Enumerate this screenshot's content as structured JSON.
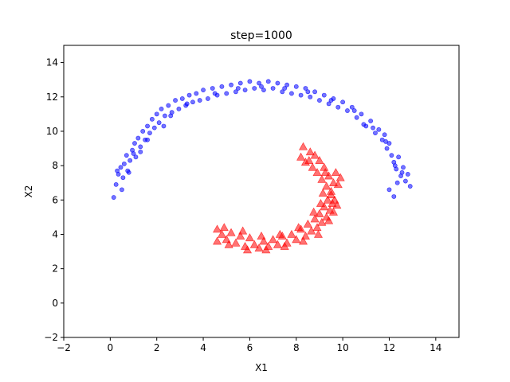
{
  "chart_data": {
    "type": "scatter",
    "title": "step=1000",
    "xlabel": "X1",
    "ylabel": "X2",
    "xlim": [
      -2,
      15
    ],
    "ylim": [
      -2,
      15
    ],
    "xticks": [
      -2,
      0,
      2,
      4,
      6,
      8,
      10,
      12,
      14
    ],
    "yticks": [
      -2,
      0,
      2,
      4,
      6,
      8,
      10,
      12,
      14
    ],
    "xtick_labels": [
      "−2",
      "0",
      "2",
      "4",
      "6",
      "8",
      "10",
      "12",
      "14"
    ],
    "ytick_labels": [
      "−2",
      "0",
      "2",
      "4",
      "6",
      "8",
      "10",
      "12",
      "14"
    ],
    "grid": false,
    "legend": "none",
    "series": [
      {
        "marker": "circle",
        "color": "#0000ff",
        "points": [
          [
            0.15,
            6.15
          ],
          [
            0.25,
            6.9
          ],
          [
            0.35,
            7.5
          ],
          [
            0.45,
            7.9
          ],
          [
            0.5,
            6.6
          ],
          [
            0.55,
            7.3
          ],
          [
            0.6,
            8.1
          ],
          [
            0.7,
            8.6
          ],
          [
            0.75,
            7.7
          ],
          [
            0.85,
            8.3
          ],
          [
            0.95,
            8.9
          ],
          [
            1.05,
            9.3
          ],
          [
            1.1,
            8.5
          ],
          [
            1.2,
            9.6
          ],
          [
            1.3,
            9.1
          ],
          [
            1.4,
            10.0
          ],
          [
            1.5,
            9.5
          ],
          [
            1.6,
            10.3
          ],
          [
            1.7,
            9.9
          ],
          [
            1.8,
            10.7
          ],
          [
            1.9,
            10.2
          ],
          [
            2.0,
            11.0
          ],
          [
            2.1,
            10.5
          ],
          [
            2.2,
            11.3
          ],
          [
            2.35,
            10.9
          ],
          [
            2.5,
            11.5
          ],
          [
            2.65,
            11.1
          ],
          [
            2.8,
            11.8
          ],
          [
            2.95,
            11.3
          ],
          [
            3.1,
            11.9
          ],
          [
            3.25,
            11.5
          ],
          [
            3.4,
            12.1
          ],
          [
            3.55,
            11.7
          ],
          [
            3.7,
            12.2
          ],
          [
            3.85,
            11.8
          ],
          [
            4.0,
            12.4
          ],
          [
            4.2,
            11.9
          ],
          [
            4.4,
            12.5
          ],
          [
            4.6,
            12.1
          ],
          [
            4.8,
            12.6
          ],
          [
            5.0,
            12.2
          ],
          [
            5.2,
            12.7
          ],
          [
            5.4,
            12.3
          ],
          [
            5.6,
            12.8
          ],
          [
            5.8,
            12.4
          ],
          [
            6.0,
            12.9
          ],
          [
            6.2,
            12.5
          ],
          [
            6.4,
            12.8
          ],
          [
            6.6,
            12.4
          ],
          [
            6.8,
            12.9
          ],
          [
            7.0,
            12.5
          ],
          [
            7.2,
            12.8
          ],
          [
            7.4,
            12.3
          ],
          [
            7.6,
            12.7
          ],
          [
            7.8,
            12.2
          ],
          [
            8.0,
            12.6
          ],
          [
            8.2,
            12.1
          ],
          [
            8.4,
            12.5
          ],
          [
            8.6,
            12.0
          ],
          [
            8.8,
            12.3
          ],
          [
            9.0,
            11.8
          ],
          [
            9.2,
            12.1
          ],
          [
            9.4,
            11.6
          ],
          [
            9.6,
            11.9
          ],
          [
            9.8,
            11.4
          ],
          [
            10.0,
            11.7
          ],
          [
            10.2,
            11.2
          ],
          [
            10.4,
            11.4
          ],
          [
            10.6,
            10.8
          ],
          [
            10.8,
            11.0
          ],
          [
            11.0,
            10.3
          ],
          [
            11.2,
            10.6
          ],
          [
            11.4,
            9.9
          ],
          [
            11.55,
            10.1
          ],
          [
            11.7,
            9.5
          ],
          [
            11.8,
            9.8
          ],
          [
            11.9,
            9.0
          ],
          [
            12.0,
            9.3
          ],
          [
            12.1,
            8.6
          ],
          [
            12.2,
            8.2
          ],
          [
            12.3,
            7.8
          ],
          [
            12.4,
            8.5
          ],
          [
            12.5,
            7.4
          ],
          [
            12.6,
            7.9
          ],
          [
            12.7,
            7.1
          ],
          [
            12.8,
            7.5
          ],
          [
            12.9,
            6.8
          ],
          [
            12.2,
            6.2
          ],
          [
            12.0,
            6.6
          ],
          [
            12.35,
            7.0
          ],
          [
            0.3,
            7.7
          ],
          [
            1.0,
            8.7
          ],
          [
            1.6,
            9.5
          ],
          [
            2.6,
            10.9
          ],
          [
            3.3,
            11.6
          ],
          [
            4.5,
            12.2
          ],
          [
            5.5,
            12.5
          ],
          [
            6.5,
            12.6
          ],
          [
            7.5,
            12.5
          ],
          [
            8.5,
            12.3
          ],
          [
            9.5,
            11.8
          ],
          [
            10.5,
            11.2
          ],
          [
            11.3,
            10.2
          ],
          [
            11.85,
            9.4
          ],
          [
            12.25,
            8.0
          ],
          [
            12.55,
            7.6
          ],
          [
            0.8,
            7.6
          ],
          [
            1.3,
            8.8
          ],
          [
            2.3,
            10.3
          ],
          [
            10.9,
            10.4
          ]
        ]
      },
      {
        "marker": "triangle",
        "color": "#ff0000",
        "points": [
          [
            4.6,
            4.3
          ],
          [
            4.6,
            3.6
          ],
          [
            4.8,
            4.0
          ],
          [
            5.0,
            3.7
          ],
          [
            5.2,
            4.1
          ],
          [
            5.4,
            3.5
          ],
          [
            5.6,
            3.9
          ],
          [
            5.8,
            3.3
          ],
          [
            6.0,
            3.8
          ],
          [
            6.2,
            3.4
          ],
          [
            6.4,
            3.2
          ],
          [
            6.6,
            3.6
          ],
          [
            6.8,
            3.3
          ],
          [
            7.0,
            3.7
          ],
          [
            7.2,
            3.4
          ],
          [
            7.4,
            3.9
          ],
          [
            7.6,
            3.5
          ],
          [
            7.8,
            4.0
          ],
          [
            8.0,
            3.7
          ],
          [
            8.2,
            4.3
          ],
          [
            8.4,
            3.9
          ],
          [
            8.5,
            4.6
          ],
          [
            8.65,
            4.2
          ],
          [
            8.8,
            4.9
          ],
          [
            8.9,
            4.4
          ],
          [
            9.0,
            5.2
          ],
          [
            9.1,
            4.7
          ],
          [
            9.2,
            5.6
          ],
          [
            9.3,
            5.0
          ],
          [
            9.35,
            6.0
          ],
          [
            9.45,
            5.4
          ],
          [
            9.5,
            6.5
          ],
          [
            9.55,
            5.8
          ],
          [
            9.6,
            7.0
          ],
          [
            9.5,
            6.3
          ],
          [
            9.4,
            7.4
          ],
          [
            9.3,
            6.8
          ],
          [
            9.2,
            7.9
          ],
          [
            9.1,
            7.2
          ],
          [
            9.0,
            8.3
          ],
          [
            8.9,
            7.6
          ],
          [
            8.8,
            8.6
          ],
          [
            8.7,
            7.9
          ],
          [
            8.6,
            8.8
          ],
          [
            8.4,
            8.2
          ],
          [
            8.3,
            9.1
          ],
          [
            8.2,
            8.5
          ],
          [
            9.7,
            7.6
          ],
          [
            9.8,
            6.9
          ],
          [
            9.9,
            7.3
          ],
          [
            9.6,
            5.3
          ],
          [
            9.4,
            4.8
          ],
          [
            8.95,
            4.0
          ],
          [
            8.3,
            3.6
          ],
          [
            7.5,
            3.3
          ],
          [
            6.7,
            3.1
          ],
          [
            5.9,
            3.1
          ],
          [
            5.1,
            3.4
          ],
          [
            4.9,
            4.4
          ],
          [
            5.7,
            4.2
          ],
          [
            6.5,
            3.9
          ],
          [
            7.3,
            4.0
          ],
          [
            8.1,
            4.4
          ],
          [
            8.75,
            5.3
          ],
          [
            9.15,
            6.4
          ],
          [
            9.25,
            7.6
          ],
          [
            8.55,
            8.3
          ],
          [
            9.65,
            6.0
          ],
          [
            9.05,
            5.8
          ],
          [
            9.75,
            5.7
          ]
        ]
      }
    ]
  }
}
